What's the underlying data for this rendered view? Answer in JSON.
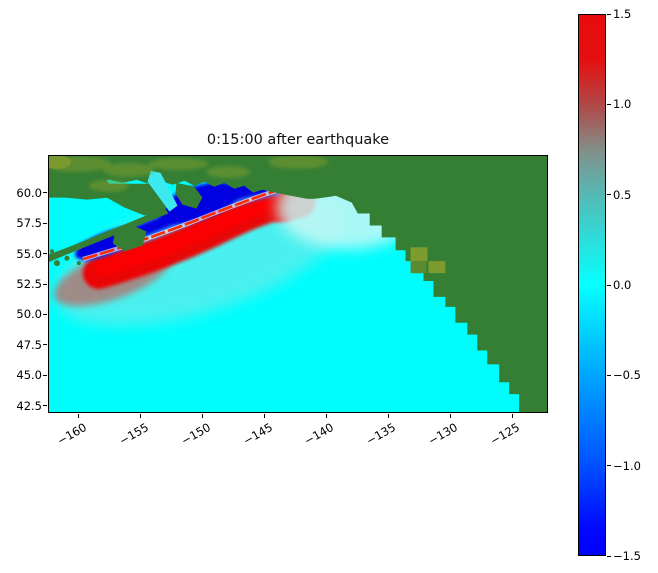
{
  "figure": {
    "background": "#ffffff",
    "kind": "matplotlib-style geophysical simulation snapshot"
  },
  "chart_data": {
    "type": "heatmap",
    "title": "0:15:00 after earthquake",
    "xlabel": "",
    "ylabel": "",
    "x_ticks": [
      -160,
      -155,
      -150,
      -145,
      -140,
      -135,
      -130,
      -125
    ],
    "x_tick_labels": [
      "−160",
      "−155",
      "−150",
      "−145",
      "−140",
      "−135",
      "−130",
      "−125"
    ],
    "y_ticks": [
      60.0,
      57.5,
      55.0,
      52.5,
      50.0,
      47.5,
      45.0,
      42.5
    ],
    "y_tick_labels": [
      "60.0",
      "57.5",
      "55.0",
      "52.5",
      "50.0",
      "47.5",
      "45.0",
      "42.5"
    ],
    "xlim": [
      -162.5,
      -122.1
    ],
    "ylim": [
      41.9,
      63.1
    ],
    "grid": false,
    "legend": null,
    "colorbar": {
      "min": -1.5,
      "max": 1.5,
      "ticks": [
        1.5,
        1.0,
        0.5,
        0.0,
        -0.5,
        -1.0,
        -1.5
      ],
      "tick_labels": [
        "1.5",
        "1.0",
        "0.5",
        "0.0",
        "−0.5",
        "−1.0",
        "−1.5"
      ],
      "orientation": "vertical",
      "position": "right",
      "stops": [
        {
          "value": 1.5,
          "color": "#e80d0d"
        },
        {
          "value": 1.25,
          "color": "#e60f0f"
        },
        {
          "value": 1.0,
          "color": "#b14848"
        },
        {
          "value": 0.75,
          "color": "#838f89"
        },
        {
          "value": 0.5,
          "color": "#56b9b4"
        },
        {
          "value": 0.25,
          "color": "#2cdedb"
        },
        {
          "value": 0.0,
          "color": "#06ffff"
        },
        {
          "value": -0.5,
          "color": "#00a6ff"
        },
        {
          "value": -1.0,
          "color": "#0051ff"
        },
        {
          "value": -1.35,
          "color": "#0008ff"
        },
        {
          "value": -1.5,
          "color": "#0000fe"
        }
      ]
    },
    "description": "Tsunami sea-surface elevation (m) over the Gulf of Alaska 15 minutes after an Alaska-Aleutian megathrust earthquake. A red leading-wave crest (>1.5) arcs along the trench from about (-158, 53) to (-146, 59.5); dark blue troughs (<-1.0) lie shoreward between the crest and the Alaska Peninsula / Kodiak / Prince William Sound coasts; the remaining ocean is at 0 (cyan). Land (Alaska mainland, Alaska Peninsula islands, and the stair-stepped North American west coast at lower grid resolution on the right) is masked dark green."
  },
  "map": {
    "colors": {
      "ocean": "#00fdfd",
      "land": "#357f35",
      "land_olive": "#7d9b2f",
      "land_olive_dark": "#5c8a31",
      "wave_positive": "#ee0606",
      "wave_positive_core": "#fb0101",
      "wave_negative": "#0000e0",
      "wave_negative_light": "#2a6cff",
      "rupture_line": "#ff2a00",
      "trailing_halo": "#b4736e",
      "outer_halo": "#b7dedb",
      "forerunner_fan": "#c6f8f6",
      "inlet_water": "#3ce9ee"
    },
    "regions": {
      "upper_left_land": "Alaska mainland",
      "right_land": "North America west coast (coarse stair-step mask)",
      "wave_source": "Alaska-Aleutian subduction zone"
    }
  }
}
